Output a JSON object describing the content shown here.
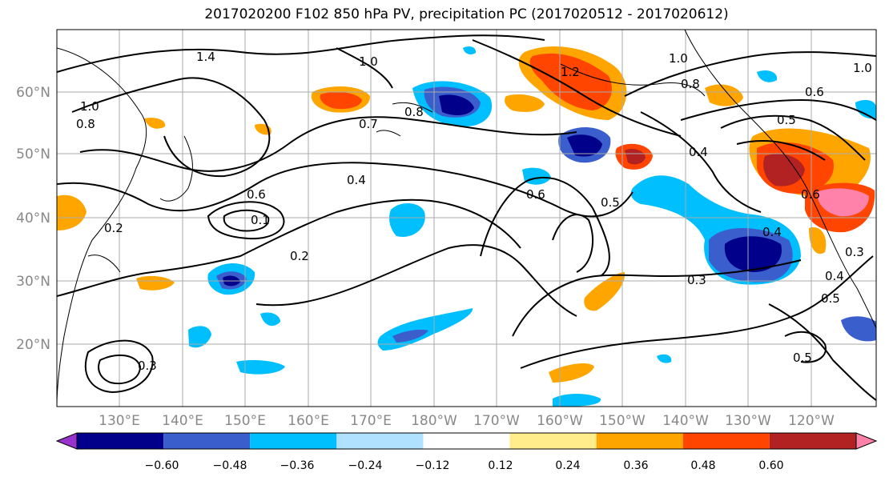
{
  "title": "2017020200 F102 850 hPa PV, precipitation PC (2017020512 - 2017020612)",
  "lat_labels": [
    "60°N",
    "50°N",
    "40°N",
    "30°N",
    "20°N"
  ],
  "lon_labels": [
    "130°E",
    "140°E",
    "150°E",
    "160°E",
    "170°E",
    "180°W",
    "170°W",
    "160°W",
    "150°W",
    "140°W",
    "130°W",
    "120°W"
  ],
  "colorbar": {
    "colors": [
      "#9a32cd",
      "#00008b",
      "#3a5fcd",
      "#00bfff",
      "#b0e2ff",
      "#ffffff",
      "#ffec8b",
      "#ffa500",
      "#ff4500",
      "#b22222",
      "#ff82ab"
    ],
    "labels": [
      "−0.60",
      "−0.48",
      "−0.36",
      "−0.24",
      "−0.12",
      "0.12",
      "0.24",
      "0.36",
      "0.48",
      "0.60"
    ]
  },
  "contour_labels": [
    "1.4",
    "1.0",
    "0.8",
    "1.0",
    "0.7",
    "0.8",
    "1.2",
    "1.0",
    "0.8",
    "0.6",
    "0.5",
    "0.6",
    "0.4",
    "0.6",
    "0.1",
    "0.2",
    "0.4",
    "0.6",
    "0.5",
    "0.4",
    "0.3",
    "0.3",
    "0.5",
    "0.4",
    "0.5",
    "0.3",
    "0.2",
    "1.0"
  ]
}
